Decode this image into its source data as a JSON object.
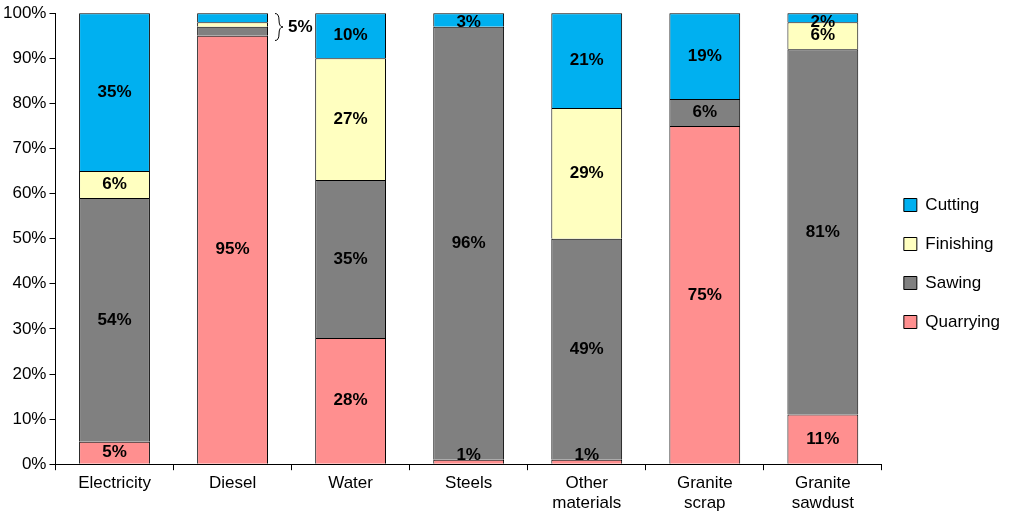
{
  "chart_data": {
    "type": "bar",
    "stacked": true,
    "legend": "right",
    "categories": [
      "Electricity",
      "Diesel",
      "Water",
      "Steels",
      "Other materials",
      "Granite scrap",
      "Granite sawdust"
    ],
    "ylim": [
      0,
      100
    ],
    "yticks": [
      {
        "value": 0,
        "label": "0%"
      },
      {
        "value": 10,
        "label": "10%"
      },
      {
        "value": 20,
        "label": "20%"
      },
      {
        "value": 30,
        "label": "30%"
      },
      {
        "value": 40,
        "label": "40%"
      },
      {
        "value": 50,
        "label": "50%"
      },
      {
        "value": 60,
        "label": "60%"
      },
      {
        "value": 70,
        "label": "70%"
      },
      {
        "value": 80,
        "label": "80%"
      },
      {
        "value": 90,
        "label": "90%"
      },
      {
        "value": 100,
        "label": "100%"
      }
    ],
    "series": [
      {
        "name": "Quarrying",
        "color": "#ff8f8f",
        "values": [
          5,
          95,
          28,
          1,
          1,
          75,
          11
        ],
        "value_labels": [
          "5%",
          "95%",
          "28%",
          "1%",
          "1%",
          "75%",
          "11%"
        ]
      },
      {
        "name": "Sawing",
        "color": "#808080",
        "values": [
          54,
          2,
          35,
          96,
          49,
          6,
          81
        ],
        "value_labels": [
          "54%",
          null,
          "35%",
          "96%",
          "49%",
          "6%",
          "81%"
        ]
      },
      {
        "name": "Finishing",
        "color": "#ffffc0",
        "values": [
          6,
          1,
          27,
          0,
          29,
          0,
          6
        ],
        "value_labels": [
          "6%",
          null,
          "27%",
          null,
          "29%",
          null,
          "6%"
        ]
      },
      {
        "name": "Cutting",
        "color": "#00b0f0",
        "values": [
          35,
          2,
          10,
          3,
          21,
          19,
          2
        ],
        "value_labels": [
          "35%",
          null,
          "10%",
          "3%",
          "21%",
          "19%",
          "2%"
        ]
      }
    ],
    "annotations": [
      "5%"
    ]
  }
}
